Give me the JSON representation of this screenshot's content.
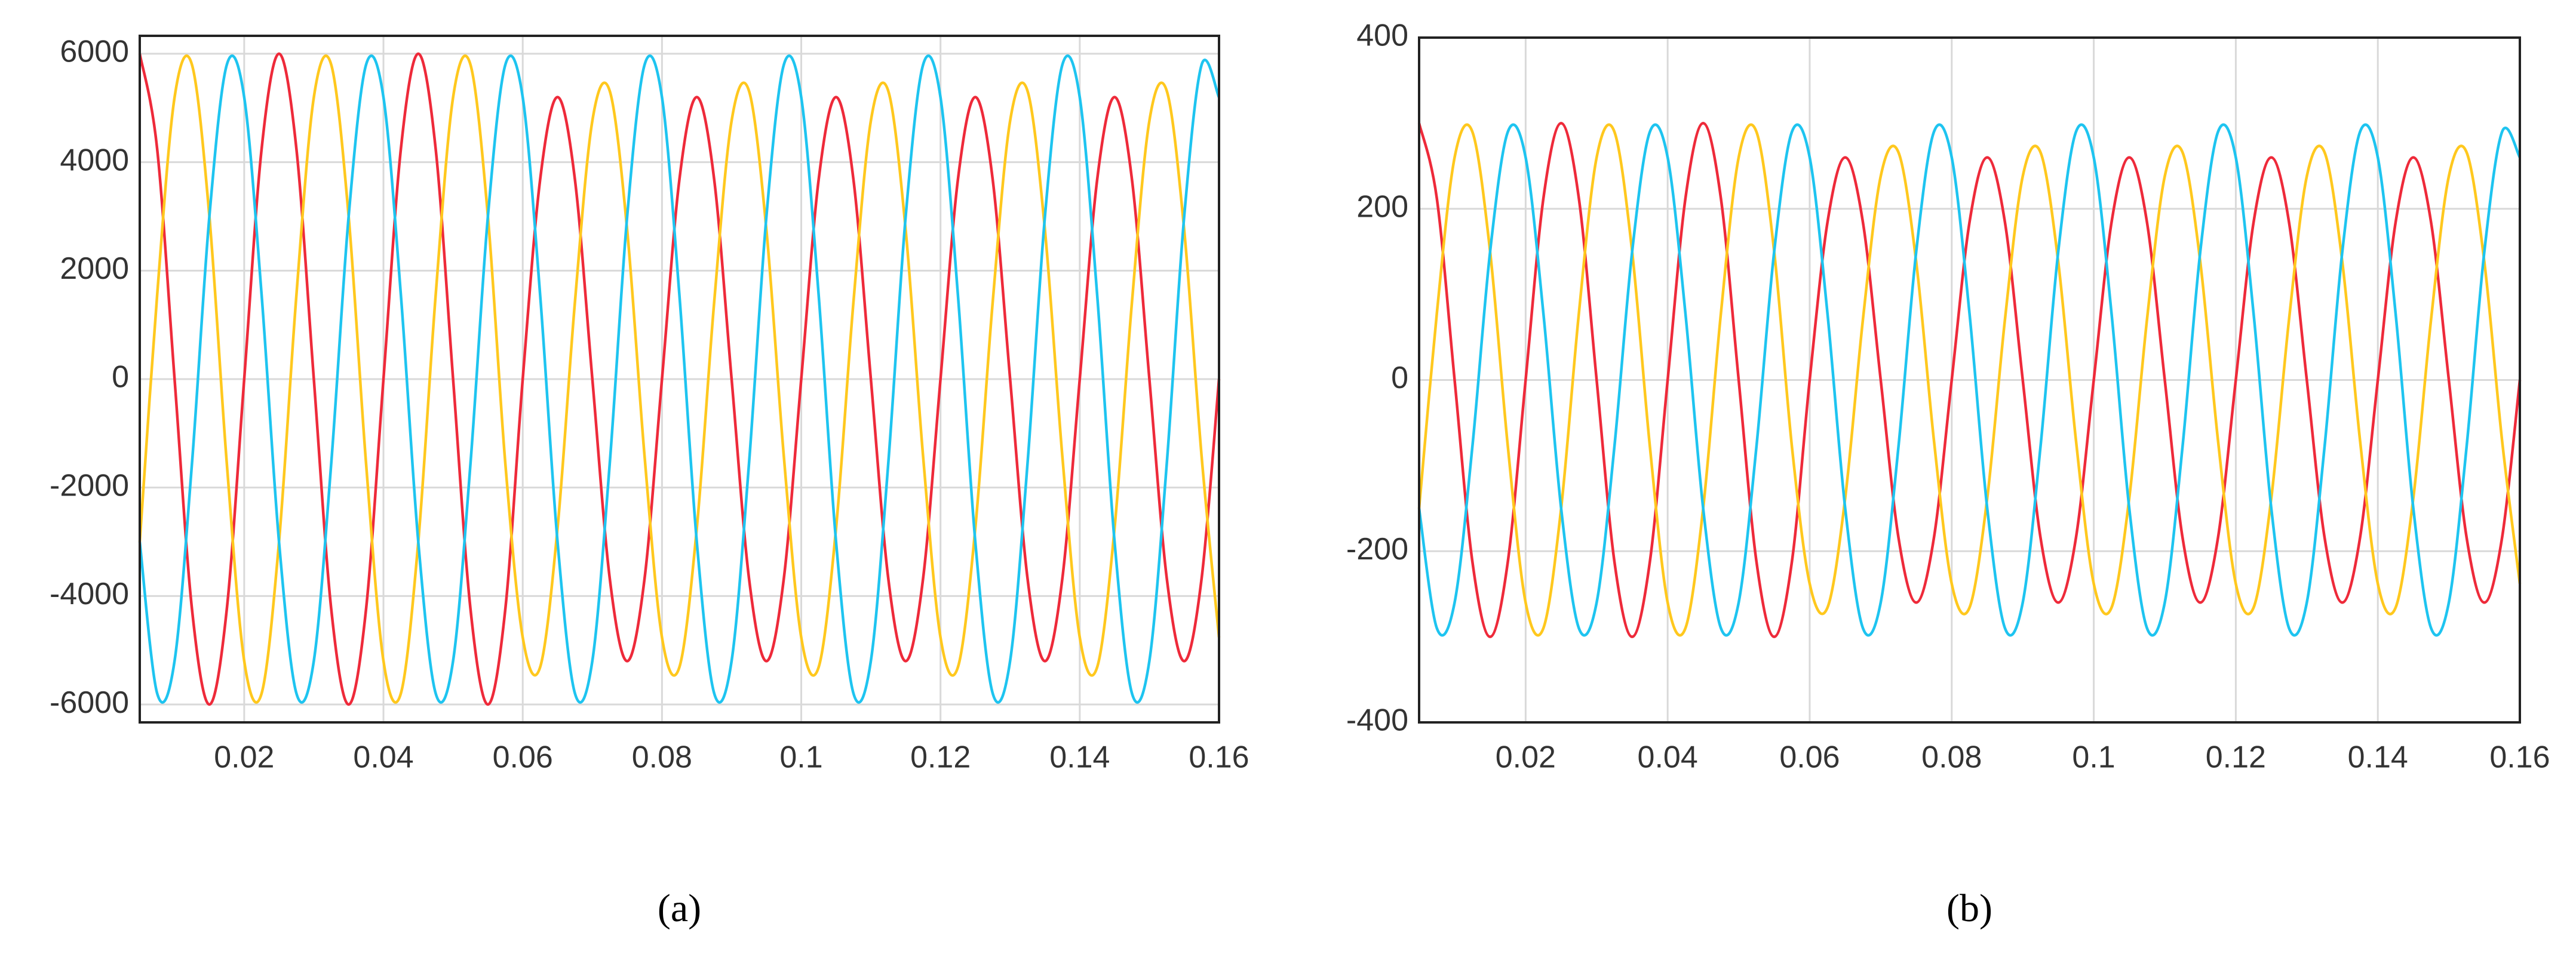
{
  "chart_data": [
    {
      "type": "line",
      "caption": "(a)",
      "x": [
        0.005,
        0.0075,
        0.01,
        0.0125,
        0.015,
        0.0175,
        0.02,
        0.0225,
        0.025,
        0.0275,
        0.03,
        0.0325,
        0.035,
        0.0375,
        0.04,
        0.0425,
        0.045,
        0.0475,
        0.05,
        0.0525,
        0.055,
        0.0575,
        0.06,
        0.0625,
        0.065,
        0.0675,
        0.07,
        0.0725,
        0.075,
        0.0775,
        0.08,
        0.0825,
        0.085,
        0.0875,
        0.09,
        0.0925,
        0.095,
        0.0975,
        0.1,
        0.1025,
        0.105,
        0.1075,
        0.11,
        0.1125,
        0.115,
        0.1175,
        0.12,
        0.1225,
        0.125,
        0.1275,
        0.13,
        0.1325,
        0.135,
        0.1375,
        0.14,
        0.1425,
        0.145,
        0.1475,
        0.15,
        0.1525,
        0.155,
        0.1575,
        0.16
      ],
      "series": [
        {
          "color": "#ee2a3a",
          "values": [
            6000,
            4243,
            0,
            -4243,
            -6000,
            -4243,
            0,
            4243,
            6000,
            4243,
            0,
            -4243,
            -6000,
            -4243,
            0,
            4243,
            6000,
            4243,
            0,
            -4243,
            -6000,
            -4243,
            0,
            3677,
            5200,
            3677,
            0,
            -3677,
            -5200,
            -3677,
            0,
            3677,
            5200,
            3677,
            0,
            -3677,
            -5200,
            -3677,
            0,
            3677,
            5200,
            3677,
            0,
            -3677,
            -5200,
            -3677,
            0,
            3677,
            5200,
            3677,
            0,
            -3677,
            -5200,
            -3677,
            0,
            3677,
            5200,
            3677,
            0,
            -3677,
            -5200,
            -3677,
            0
          ]
        },
        {
          "color": "#ffc81e",
          "values": [
            -3000,
            1553,
            5196,
            5796,
            3000,
            -1553,
            -5196,
            -5796,
            -3000,
            1553,
            5196,
            5796,
            3000,
            -1553,
            -5196,
            -5796,
            -3000,
            1553,
            5196,
            5796,
            3000,
            -1553,
            -4763,
            -5313,
            -2750,
            1424,
            4763,
            5313,
            2750,
            -1424,
            -4763,
            -5313,
            -2750,
            1424,
            4763,
            5313,
            2750,
            -1424,
            -4763,
            -5313,
            -2750,
            1424,
            4763,
            5313,
            2750,
            -1424,
            -4763,
            -5313,
            -2750,
            1424,
            4763,
            5313,
            2750,
            -1424,
            -4763,
            -5313,
            -2750,
            1424,
            4763,
            5313,
            2750,
            -1424,
            -4763
          ]
        },
        {
          "color": "#1ec4f0",
          "values": [
            -3000,
            -5796,
            -5196,
            -1553,
            3000,
            5796,
            5196,
            1553,
            -3000,
            -5796,
            -5196,
            -1553,
            3000,
            5796,
            5196,
            1553,
            -3000,
            -5796,
            -5196,
            -1553,
            3000,
            5796,
            5196,
            1553,
            -3000,
            -5796,
            -5196,
            -1553,
            3000,
            5796,
            5196,
            1553,
            -3000,
            -5796,
            -5196,
            -1553,
            3000,
            5796,
            5196,
            1553,
            -3000,
            -5796,
            -5196,
            -1553,
            3000,
            5796,
            5196,
            1553,
            -3000,
            -5796,
            -5196,
            -1553,
            3000,
            5796,
            5196,
            1553,
            -3000,
            -5796,
            -5196,
            -1553,
            3000,
            5796,
            5196
          ]
        }
      ],
      "xlim": [
        0.005,
        0.16
      ],
      "xticks": [
        0.02,
        0.04,
        0.06,
        0.08,
        0.1,
        0.12,
        0.14,
        0.16
      ],
      "ylim": [
        -6330,
        6330
      ],
      "yticks": [
        -6000,
        -4000,
        -2000,
        0,
        2000,
        4000,
        6000
      ],
      "grid": true
    },
    {
      "type": "line",
      "caption": "(b)",
      "x": [
        0.005,
        0.0075,
        0.01,
        0.0125,
        0.015,
        0.0175,
        0.02,
        0.0225,
        0.025,
        0.0275,
        0.03,
        0.0325,
        0.035,
        0.0375,
        0.04,
        0.0425,
        0.045,
        0.0475,
        0.05,
        0.0525,
        0.055,
        0.0575,
        0.06,
        0.0625,
        0.065,
        0.0675,
        0.07,
        0.0725,
        0.075,
        0.0775,
        0.08,
        0.0825,
        0.085,
        0.0875,
        0.09,
        0.0925,
        0.095,
        0.0975,
        0.1,
        0.1025,
        0.105,
        0.1075,
        0.11,
        0.1125,
        0.115,
        0.1175,
        0.12,
        0.1225,
        0.125,
        0.1275,
        0.13,
        0.1325,
        0.135,
        0.1375,
        0.14,
        0.1425,
        0.145,
        0.1475,
        0.15,
        0.1525,
        0.155,
        0.1575,
        0.16
      ],
      "series": [
        {
          "color": "#ee2a3a",
          "values": [
            300,
            212,
            0,
            -212,
            -300,
            -212,
            0,
            212,
            300,
            212,
            0,
            -212,
            -300,
            -212,
            0,
            212,
            300,
            212,
            0,
            -212,
            -300,
            -212,
            0,
            184,
            260,
            184,
            0,
            -184,
            -260,
            -184,
            0,
            184,
            260,
            184,
            0,
            -184,
            -260,
            -184,
            0,
            184,
            260,
            184,
            0,
            -184,
            -260,
            -184,
            0,
            184,
            260,
            184,
            0,
            -184,
            -260,
            -184,
            0,
            184,
            260,
            184,
            0,
            -184,
            -260,
            -184,
            0
          ]
        },
        {
          "color": "#ffc81e",
          "values": [
            -150,
            78,
            260,
            290,
            150,
            -78,
            -260,
            -290,
            -150,
            78,
            260,
            290,
            150,
            -78,
            -260,
            -290,
            -150,
            78,
            260,
            290,
            150,
            -78,
            -238,
            -266,
            -138,
            71,
            238,
            266,
            138,
            -71,
            -238,
            -266,
            -138,
            71,
            238,
            266,
            138,
            -71,
            -238,
            -266,
            -138,
            71,
            238,
            266,
            138,
            -71,
            -238,
            -266,
            -138,
            71,
            238,
            266,
            138,
            -71,
            -238,
            -266,
            -138,
            71,
            238,
            266,
            138,
            -71,
            -238
          ]
        },
        {
          "color": "#1ec4f0",
          "values": [
            -150,
            -290,
            -260,
            -78,
            150,
            290,
            260,
            78,
            -150,
            -290,
            -260,
            -78,
            150,
            290,
            260,
            78,
            -150,
            -290,
            -260,
            -78,
            150,
            290,
            260,
            78,
            -150,
            -290,
            -260,
            -78,
            150,
            290,
            260,
            78,
            -150,
            -290,
            -260,
            -78,
            150,
            290,
            260,
            78,
            -150,
            -290,
            -260,
            -78,
            150,
            290,
            260,
            78,
            -150,
            -290,
            -260,
            -78,
            150,
            290,
            260,
            78,
            -150,
            -290,
            -260,
            -78,
            150,
            290,
            260
          ]
        }
      ],
      "xlim": [
        0.005,
        0.16
      ],
      "xticks": [
        0.02,
        0.04,
        0.06,
        0.08,
        0.1,
        0.12,
        0.14,
        0.16
      ],
      "ylim": [
        -400,
        400
      ],
      "yticks": [
        -400,
        -200,
        0,
        200,
        400
      ],
      "grid": true
    }
  ]
}
